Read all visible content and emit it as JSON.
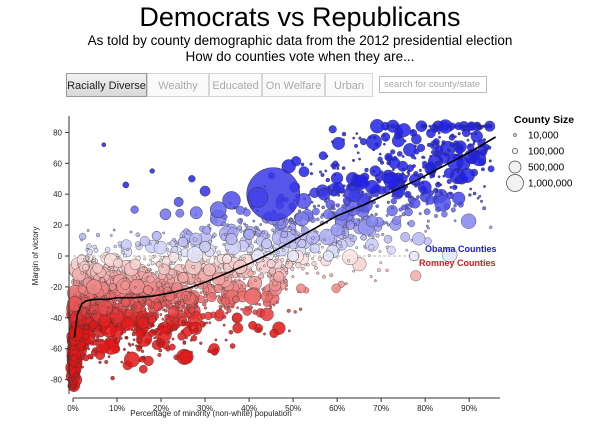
{
  "header": {
    "title": "Democrats vs Republicans",
    "subtitle": "As told by county demographic data from the 2012 presidential election",
    "question": "How do counties vote when they are..."
  },
  "tabs": [
    {
      "label": "Racially Diverse",
      "active": true
    },
    {
      "label": "Wealthy",
      "active": false
    },
    {
      "label": "Educated",
      "active": false
    },
    {
      "label": "On Welfare",
      "active": false
    },
    {
      "label": "Urban",
      "active": false
    }
  ],
  "search": {
    "placeholder": "search for county/state"
  },
  "colors": {
    "obama": "#1a1ad6",
    "romney": "#d61a1a",
    "trend": "#000000"
  },
  "chart_data": {
    "type": "scatter",
    "xlabel": "Percentage of minority (non-white) population",
    "ylabel": "Margin of victory",
    "xlim": [
      0,
      97
    ],
    "ylim": [
      -88,
      88
    ],
    "x_ticks": [
      "0%",
      "10%",
      "20%",
      "30%",
      "40%",
      "50%",
      "60%",
      "70%",
      "80%",
      "90%"
    ],
    "y_ticks": [
      "-80",
      "-60",
      "-40",
      "-20",
      "0",
      "20",
      "40",
      "60",
      "80"
    ],
    "series": [
      {
        "name": "Obama Counties",
        "color": "#1a1ad6"
      },
      {
        "name": "Romney Counties",
        "color": "#d61a1a"
      }
    ],
    "legend": {
      "title": "County Size",
      "entries": [
        "10,000",
        "100,000",
        "500,000",
        "1,000,000"
      ],
      "placement": "top-right"
    },
    "trend_line": [
      {
        "x": 0.3,
        "y": -53
      },
      {
        "x": 1,
        "y": -38
      },
      {
        "x": 2,
        "y": -31
      },
      {
        "x": 3,
        "y": -29
      },
      {
        "x": 5,
        "y": -28
      },
      {
        "x": 8,
        "y": -28
      },
      {
        "x": 10,
        "y": -27
      },
      {
        "x": 14,
        "y": -27
      },
      {
        "x": 18,
        "y": -26
      },
      {
        "x": 22,
        "y": -24
      },
      {
        "x": 26,
        "y": -21
      },
      {
        "x": 30,
        "y": -17
      },
      {
        "x": 35,
        "y": -11
      },
      {
        "x": 40,
        "y": -5
      },
      {
        "x": 45,
        "y": 2
      },
      {
        "x": 50,
        "y": 10
      },
      {
        "x": 55,
        "y": 18
      },
      {
        "x": 60,
        "y": 26
      },
      {
        "x": 66,
        "y": 33
      },
      {
        "x": 72,
        "y": 41
      },
      {
        "x": 78,
        "y": 49
      },
      {
        "x": 84,
        "y": 58
      },
      {
        "x": 90,
        "y": 67
      },
      {
        "x": 96,
        "y": 77
      }
    ],
    "points": [
      {
        "x": 45.5,
        "y": 40,
        "pop": 9800000
      },
      {
        "x": 42,
        "y": 38,
        "pop": 1400000
      },
      {
        "x": 36,
        "y": 36,
        "pop": 1100000
      },
      {
        "x": 33,
        "y": 30,
        "pop": 900000
      },
      {
        "x": 49,
        "y": 58,
        "pop": 650000
      },
      {
        "x": 57,
        "y": 40,
        "pop": 500000
      },
      {
        "x": 74,
        "y": 42,
        "pop": 500000
      },
      {
        "x": 52,
        "y": 24,
        "pop": 700000
      },
      {
        "x": 59,
        "y": 82,
        "pop": 200000
      },
      {
        "x": 71,
        "y": 77,
        "pop": 260000
      },
      {
        "x": 66,
        "y": 74,
        "pop": 150000
      },
      {
        "x": 58,
        "y": 27,
        "pop": 320000
      },
      {
        "x": 63,
        "y": 20,
        "pop": 260000
      },
      {
        "x": 28,
        "y": 28,
        "pop": 520000
      },
      {
        "x": 21,
        "y": 27,
        "pop": 420000
      },
      {
        "x": 30,
        "y": 42,
        "pop": 360000
      },
      {
        "x": 27,
        "y": 50,
        "pop": 160000
      },
      {
        "x": 24,
        "y": 35,
        "pop": 300000
      },
      {
        "x": 40,
        "y": 14,
        "pop": 380000
      },
      {
        "x": 36,
        "y": 11,
        "pop": 450000
      },
      {
        "x": 44,
        "y": 8,
        "pop": 360000
      },
      {
        "x": 30,
        "y": 6,
        "pop": 420000
      },
      {
        "x": 25,
        "y": 9,
        "pop": 330000
      },
      {
        "x": 19,
        "y": 13,
        "pop": 300000
      },
      {
        "x": 14,
        "y": 30,
        "pop": 200000
      },
      {
        "x": 12,
        "y": 46,
        "pop": 130000
      },
      {
        "x": 7,
        "y": 72,
        "pop": 60000
      },
      {
        "x": 18,
        "y": 55,
        "pop": 80000
      },
      {
        "x": 42,
        "y": 0,
        "pop": 550000
      },
      {
        "x": 50,
        "y": 0,
        "pop": 430000
      },
      {
        "x": 58,
        "y": 0,
        "pop": 380000
      },
      {
        "x": 77.5,
        "y": 0,
        "pop": 330000
      },
      {
        "x": 35,
        "y": -2,
        "pop": 300000
      },
      {
        "x": 38,
        "y": -7,
        "pop": 650000
      },
      {
        "x": 31,
        "y": -9,
        "pop": 520000
      },
      {
        "x": 45,
        "y": -5,
        "pop": 240000
      },
      {
        "x": 25,
        "y": -14,
        "pop": 380000
      },
      {
        "x": 33,
        "y": -21,
        "pop": 250000
      },
      {
        "x": 22,
        "y": -26,
        "pop": 330000
      },
      {
        "x": 17,
        "y": -22,
        "pop": 280000
      },
      {
        "x": 12,
        "y": -30,
        "pop": 260000
      },
      {
        "x": 9,
        "y": -20,
        "pop": 180000
      },
      {
        "x": 18,
        "y": -41,
        "pop": 220000
      },
      {
        "x": 10,
        "y": -55,
        "pop": 110000
      },
      {
        "x": 27,
        "y": -35,
        "pop": 140000
      },
      {
        "x": 15,
        "y": -60,
        "pop": 90000
      },
      {
        "x": 9,
        "y": -79,
        "pop": 50000
      },
      {
        "x": 37,
        "y": -28,
        "pop": 160000
      },
      {
        "x": 28,
        "y": -48,
        "pop": 70000
      },
      {
        "x": 52,
        "y": 8,
        "pop": 240000
      },
      {
        "x": 48,
        "y": 14,
        "pop": 160000
      },
      {
        "x": 66,
        "y": 12,
        "pop": 110000
      },
      {
        "x": 87,
        "y": 73,
        "pop": 90000
      },
      {
        "x": 79,
        "y": 52,
        "pop": 80000
      },
      {
        "x": 83,
        "y": 60,
        "pop": 70000
      },
      {
        "x": 92,
        "y": 85,
        "pop": 40000
      }
    ]
  }
}
